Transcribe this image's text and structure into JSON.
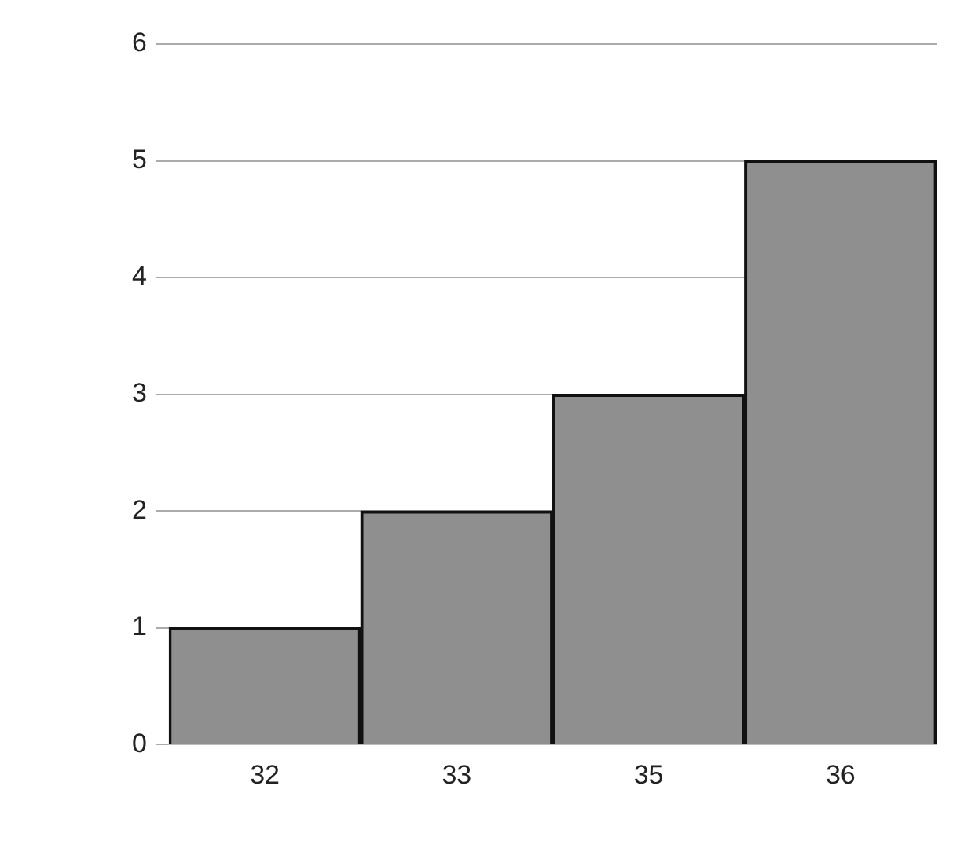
{
  "chart_data": {
    "type": "bar",
    "categories": [
      "32",
      "33",
      "35",
      "36"
    ],
    "values": [
      1,
      2,
      3,
      5
    ],
    "color": "#8f8f8f",
    "ylim": [
      0,
      6
    ],
    "yticks": [
      0,
      1,
      2,
      3,
      4,
      5,
      6
    ],
    "grid": "y",
    "legend": false
  }
}
